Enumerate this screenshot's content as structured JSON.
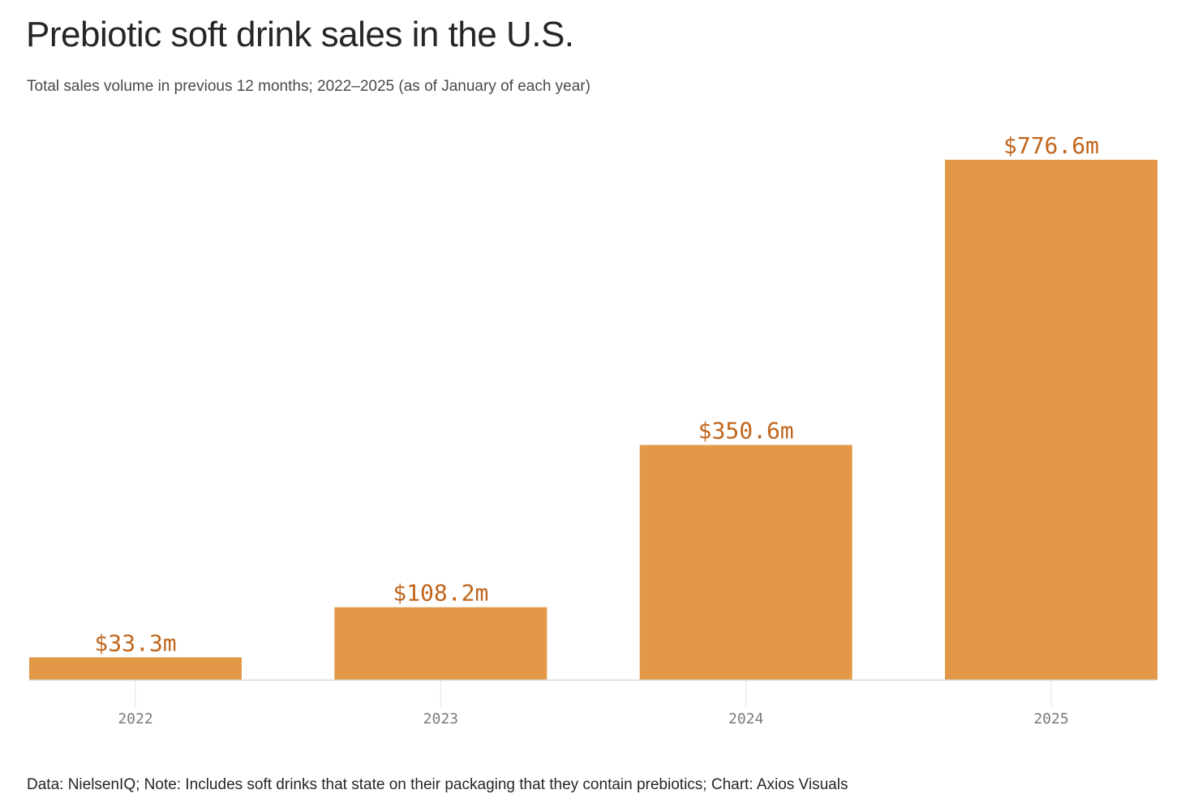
{
  "header": {
    "title": "Prebiotic soft drink sales in the U.S.",
    "subtitle": "Total sales volume in previous 12 months; 2022–2025 (as of January of each year)"
  },
  "footer": {
    "source_note": "Data: NielsenIQ; Note: Includes soft drinks that state on their packaging that they contain prebiotics; Chart: Axios Visuals"
  },
  "colors": {
    "bar": "#e39847",
    "value_label": "#c0651c",
    "tick_label": "#7a7a7a",
    "axis_line": "#d9d9d9",
    "tick_line": "#e3e3e3"
  },
  "chart_data": {
    "type": "bar",
    "title": "Prebiotic soft drink sales in the U.S.",
    "subtitle": "Total sales volume in previous 12 months; 2022–2025 (as of January of each year)",
    "xlabel": "",
    "ylabel": "",
    "categories": [
      "2022",
      "2023",
      "2024",
      "2025"
    ],
    "values": [
      33.3,
      108.2,
      350.6,
      776.6
    ],
    "value_labels": [
      "$33.3m",
      "$108.2m",
      "$350.6m",
      "$776.6m"
    ],
    "unit": "$ millions",
    "ylim": [
      0,
      776.6
    ],
    "grid": false,
    "legend": "none"
  }
}
